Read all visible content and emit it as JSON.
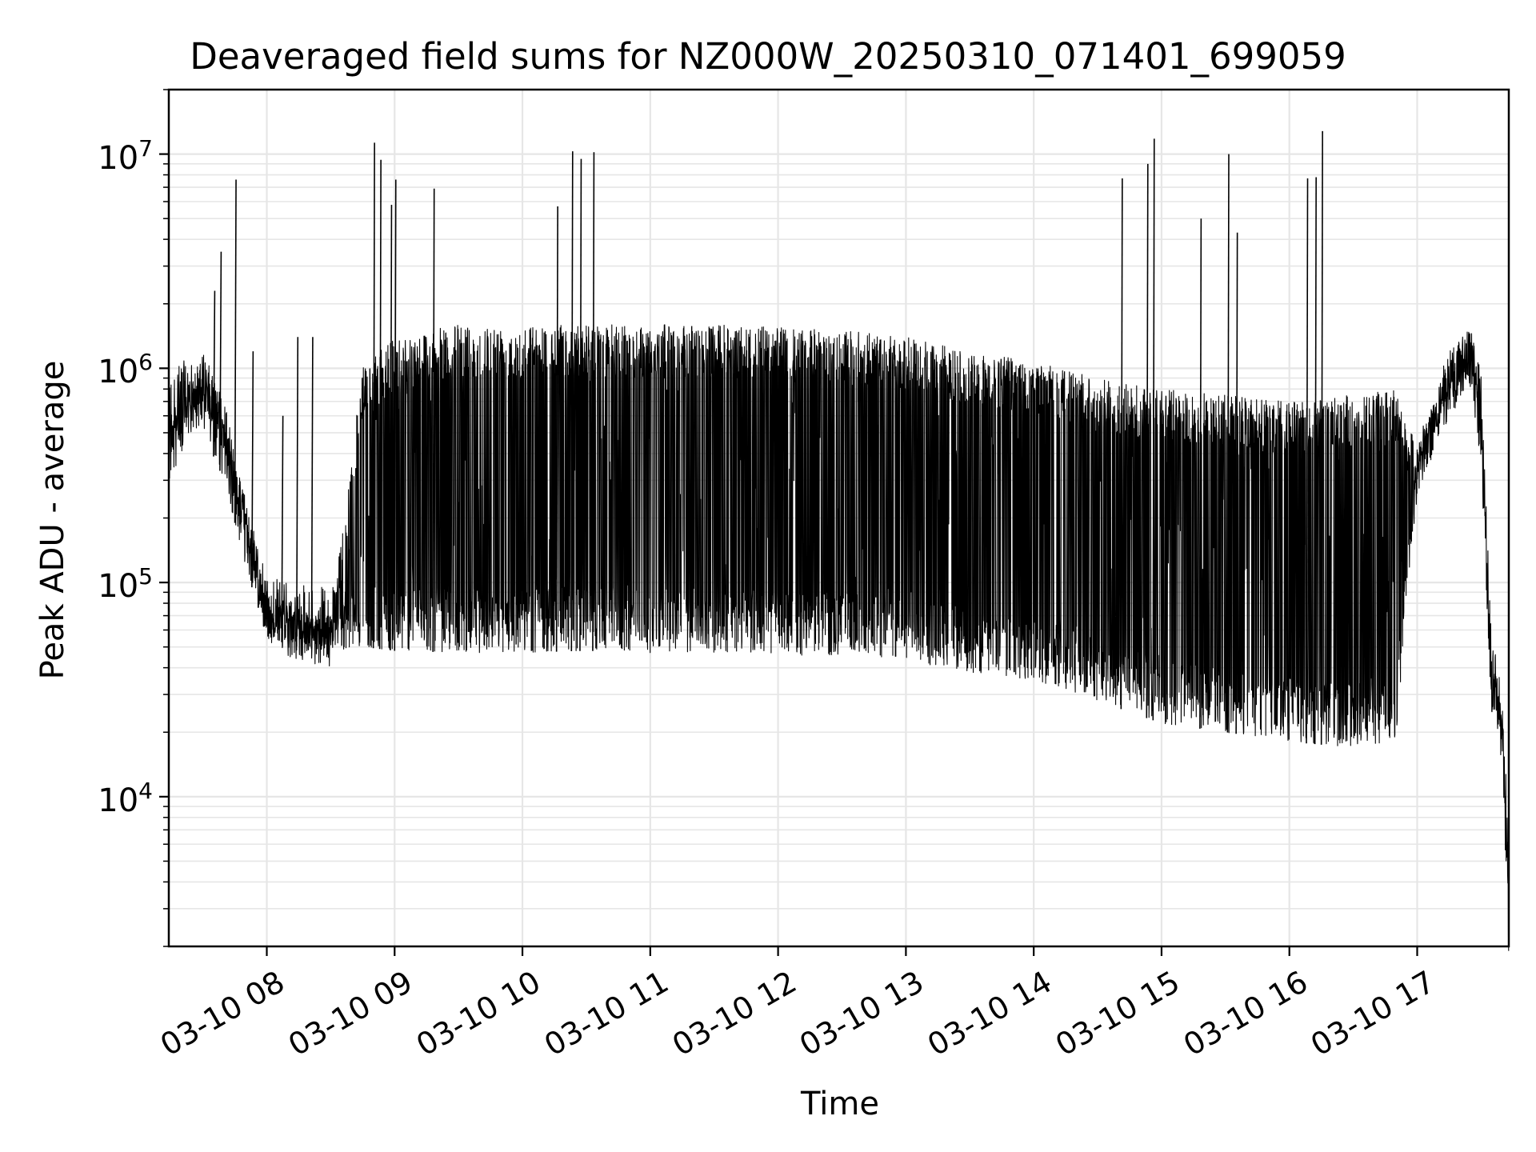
{
  "chart_data": {
    "type": "line",
    "title": "Deaveraged field sums for NZ000W_20250310_071401_699059",
    "xlabel": "Time",
    "ylabel": "Peak ADU - average",
    "yscale": "log",
    "grid": true,
    "legend": "none",
    "line_color": "#000000",
    "grid_color": "#e6e6e6",
    "x_range": [
      "2025-03-10 07:14",
      "2025-03-10 17:43"
    ],
    "ylim": [
      2000,
      20000000
    ],
    "x_ticks": [
      "03-10 08",
      "03-10 09",
      "03-10 10",
      "03-10 11",
      "03-10 12",
      "03-10 13",
      "03-10 14",
      "03-10 15",
      "03-10 16",
      "03-10 17"
    ],
    "y_ticks": [
      {
        "base": "10",
        "exp": "4",
        "value": 10000
      },
      {
        "base": "10",
        "exp": "5",
        "value": 100000
      },
      {
        "base": "10",
        "exp": "6",
        "value": 1000000
      },
      {
        "base": "10",
        "exp": "7",
        "value": 10000000
      }
    ],
    "envelope_points": [
      {
        "time": "07:14",
        "high": 500000,
        "low": 450000
      },
      {
        "time": "07:20",
        "high": 700000,
        "low": 550000
      },
      {
        "time": "07:30",
        "high": 1200000,
        "low": 500000
      },
      {
        "time": "07:40",
        "high": 700000,
        "low": 300000
      },
      {
        "time": "07:50",
        "high": 250000,
        "low": 120000
      },
      {
        "time": "08:00",
        "high": 90000,
        "low": 55000
      },
      {
        "time": "08:15",
        "high": 75000,
        "low": 50000
      },
      {
        "time": "08:30",
        "high": 70000,
        "low": 48000
      },
      {
        "time": "08:45",
        "high": 1000000,
        "low": 50000
      },
      {
        "time": "09:00",
        "high": 1400000,
        "low": 48000
      },
      {
        "time": "09:30",
        "high": 1600000,
        "low": 47000
      },
      {
        "time": "10:00",
        "high": 1600000,
        "low": 47000
      },
      {
        "time": "10:30",
        "high": 1600000,
        "low": 48000
      },
      {
        "time": "11:00",
        "high": 1600000,
        "low": 47000
      },
      {
        "time": "11:30",
        "high": 1600000,
        "low": 47000
      },
      {
        "time": "12:00",
        "high": 1550000,
        "low": 46000
      },
      {
        "time": "12:30",
        "high": 1500000,
        "low": 45000
      },
      {
        "time": "13:00",
        "high": 1400000,
        "low": 43000
      },
      {
        "time": "13:30",
        "high": 1200000,
        "low": 38000
      },
      {
        "time": "14:00",
        "high": 1100000,
        "low": 35000
      },
      {
        "time": "14:30",
        "high": 900000,
        "low": 28000
      },
      {
        "time": "15:00",
        "high": 800000,
        "low": 22000
      },
      {
        "time": "15:30",
        "high": 750000,
        "low": 20000
      },
      {
        "time": "16:00",
        "high": 700000,
        "low": 18000
      },
      {
        "time": "16:30",
        "high": 750000,
        "low": 17000
      },
      {
        "time": "16:50",
        "high": 800000,
        "low": 18000
      },
      {
        "time": "17:00",
        "high": 450000,
        "low": 250000
      },
      {
        "time": "17:15",
        "high": 1200000,
        "low": 600000
      },
      {
        "time": "17:25",
        "high": 1500000,
        "low": 800000
      },
      {
        "time": "17:30",
        "high": 600000,
        "low": 500000
      },
      {
        "time": "17:35",
        "high": 40000,
        "low": 25000
      },
      {
        "time": "17:40",
        "high": 25000,
        "low": 20000
      },
      {
        "time": "17:43",
        "high": 3000,
        "low": 2500
      }
    ],
    "spikes": [
      {
        "time": "07:35",
        "value": 2300000
      },
      {
        "time": "07:38",
        "value": 3500000
      },
      {
        "time": "07:45",
        "value": 7600000
      },
      {
        "time": "07:53",
        "value": 1200000
      },
      {
        "time": "08:07",
        "value": 600000
      },
      {
        "time": "08:14",
        "value": 1400000
      },
      {
        "time": "08:21",
        "value": 1400000
      },
      {
        "time": "08:50",
        "value": 11300000
      },
      {
        "time": "08:53",
        "value": 9400000
      },
      {
        "time": "08:58",
        "value": 5800000
      },
      {
        "time": "09:00",
        "value": 7600000
      },
      {
        "time": "09:18",
        "value": 6900000
      },
      {
        "time": "10:16",
        "value": 5700000
      },
      {
        "time": "10:23",
        "value": 10300000
      },
      {
        "time": "10:27",
        "value": 9500000
      },
      {
        "time": "10:33",
        "value": 10200000
      },
      {
        "time": "14:41",
        "value": 7700000
      },
      {
        "time": "14:53",
        "value": 9000000
      },
      {
        "time": "14:56",
        "value": 11800000
      },
      {
        "time": "15:18",
        "value": 5000000
      },
      {
        "time": "15:31",
        "value": 10000000
      },
      {
        "time": "15:35",
        "value": 4300000
      },
      {
        "time": "16:08",
        "value": 7700000
      },
      {
        "time": "16:12",
        "value": 7800000
      },
      {
        "time": "16:15",
        "value": 12800000
      }
    ]
  }
}
